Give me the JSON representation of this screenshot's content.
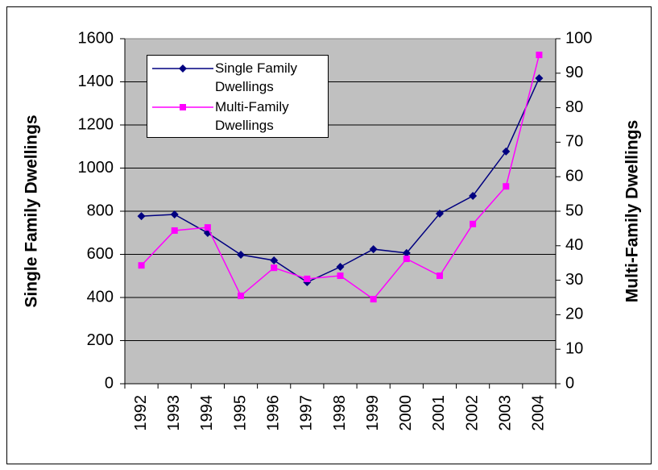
{
  "chart_data": {
    "type": "line",
    "categories": [
      "1992",
      "1993",
      "1994",
      "1995",
      "1996",
      "1997",
      "1998",
      "1999",
      "2000",
      "2001",
      "2002",
      "2003",
      "2004"
    ],
    "series": [
      {
        "name": "Single Family Dwellings",
        "color": "#000080",
        "marker": "diamond",
        "values": [
          777,
          785,
          699,
          598,
          572,
          471,
          542,
          624,
          606,
          789,
          871,
          1077,
          1417
        ]
      },
      {
        "name": "Multi-Family Dwellings",
        "color": "#ff00ff",
        "marker": "square",
        "axis": "y2",
        "values": [
          34.3,
          44.4,
          45.3,
          25.5,
          33.6,
          30.4,
          31.3,
          24.5,
          36.2,
          31.3,
          46.3,
          57.2,
          95.3
        ]
      }
    ],
    "ylabel": "Single Family Dwellings",
    "y2label": "Multi-Family Dwellings",
    "ylim": [
      0,
      1600
    ],
    "yticks": [
      0,
      200,
      400,
      600,
      800,
      1000,
      1200,
      1400,
      1600
    ],
    "y2lim": [
      0,
      100
    ],
    "y2ticks": [
      0,
      10,
      20,
      30,
      40,
      50,
      60,
      70,
      80,
      90,
      100
    ],
    "grid": true,
    "legend": "upper left"
  }
}
